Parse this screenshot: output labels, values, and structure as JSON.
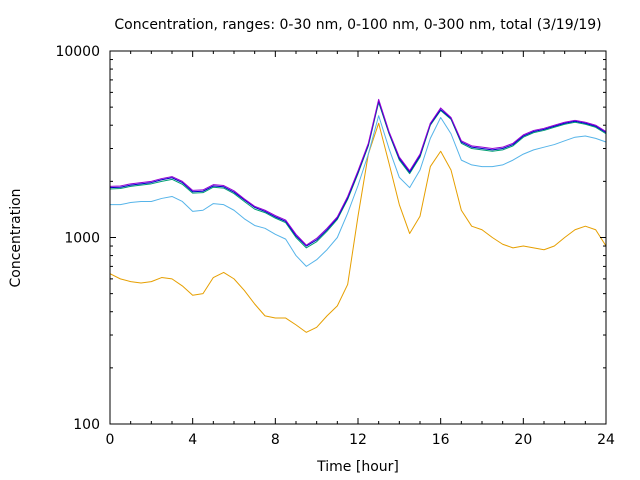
{
  "chart_data": {
    "type": "line",
    "title": "Concentration, ranges: 0-30 nm, 0-100 nm, 0-300 nm, total (3/19/19)",
    "xlabel": "Time [hour]",
    "ylabel": "Concentration",
    "xlim": [
      0,
      24
    ],
    "ylim": [
      100,
      10000
    ],
    "y_scale": "log",
    "x_ticks": [
      0,
      4,
      8,
      12,
      16,
      20,
      24
    ],
    "x_tick_labels": [
      "0",
      "4",
      "8",
      "12",
      "16",
      "20",
      "24"
    ],
    "y_ticks": [
      100,
      1000,
      10000
    ],
    "y_tick_labels": [
      "100",
      "1000",
      "10000"
    ],
    "grid": false,
    "legend": "none",
    "x": [
      0,
      0.5,
      1,
      1.5,
      2,
      2.5,
      3,
      3.5,
      4,
      4.5,
      5,
      5.5,
      6,
      6.5,
      7,
      7.5,
      8,
      8.5,
      9,
      9.5,
      10,
      10.5,
      11,
      11.5,
      12,
      12.5,
      13,
      13.5,
      14,
      14.5,
      15,
      15.5,
      16,
      16.5,
      17,
      17.5,
      18,
      18.5,
      19,
      19.5,
      20,
      20.5,
      21,
      21.5,
      22,
      22.5,
      23,
      23.5,
      24
    ],
    "series": [
      {
        "color": "#e69f00",
        "values": [
          640,
          600,
          580,
          570,
          580,
          610,
          600,
          550,
          490,
          500,
          610,
          650,
          600,
          520,
          440,
          380,
          370,
          370,
          340,
          310,
          330,
          380,
          430,
          560,
          1300,
          2800,
          4100,
          2500,
          1500,
          1050,
          1300,
          2400,
          2900,
          2300,
          1400,
          1150,
          1100,
          1000,
          920,
          880,
          900,
          880,
          860,
          900,
          1000,
          1100,
          1150,
          1100,
          900
        ]
      },
      {
        "color": "#56b4e9",
        "values": [
          1500,
          1500,
          1540,
          1560,
          1560,
          1620,
          1660,
          1560,
          1380,
          1400,
          1520,
          1500,
          1400,
          1260,
          1160,
          1120,
          1040,
          980,
          800,
          700,
          760,
          860,
          1000,
          1350,
          1900,
          2800,
          4500,
          3000,
          2100,
          1850,
          2300,
          3400,
          4400,
          3600,
          2600,
          2450,
          2400,
          2400,
          2450,
          2600,
          2800,
          2950,
          3050,
          3150,
          3300,
          3450,
          3500,
          3400,
          3250
        ]
      },
      {
        "color": "#009e73",
        "values": [
          1820,
          1830,
          1880,
          1910,
          1940,
          2000,
          2050,
          1930,
          1730,
          1740,
          1860,
          1840,
          1720,
          1560,
          1420,
          1360,
          1270,
          1200,
          1000,
          880,
          950,
          1080,
          1250,
          1600,
          2200,
          3100,
          5300,
          3600,
          2600,
          2200,
          2700,
          4000,
          4800,
          4300,
          3200,
          3000,
          2950,
          2900,
          2950,
          3100,
          3450,
          3650,
          3750,
          3900,
          4050,
          4150,
          4050,
          3900,
          3600
        ]
      },
      {
        "color": "#0000c8",
        "values": [
          1850,
          1860,
          1910,
          1940,
          1970,
          2040,
          2090,
          1970,
          1760,
          1770,
          1890,
          1870,
          1750,
          1590,
          1450,
          1380,
          1290,
          1220,
          1020,
          900,
          970,
          1100,
          1270,
          1630,
          2240,
          3150,
          5400,
          3650,
          2650,
          2240,
          2750,
          4050,
          4850,
          4350,
          3250,
          3050,
          3000,
          2950,
          3000,
          3150,
          3500,
          3700,
          3800,
          3950,
          4100,
          4200,
          4100,
          3950,
          3650
        ]
      },
      {
        "color": "#9400d3",
        "values": [
          1880,
          1890,
          1940,
          1970,
          2000,
          2070,
          2120,
          2000,
          1790,
          1800,
          1920,
          1900,
          1780,
          1610,
          1470,
          1400,
          1310,
          1240,
          1040,
          910,
          990,
          1120,
          1290,
          1660,
          2280,
          3200,
          5500,
          3700,
          2700,
          2280,
          2800,
          4100,
          4950,
          4400,
          3300,
          3100,
          3050,
          3000,
          3050,
          3200,
          3550,
          3750,
          3850,
          4000,
          4150,
          4250,
          4150,
          4000,
          3700
        ]
      }
    ]
  }
}
